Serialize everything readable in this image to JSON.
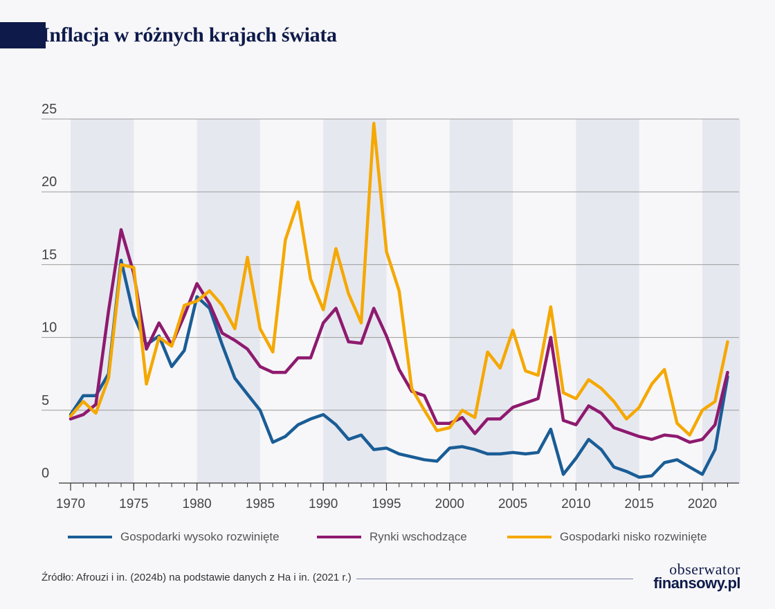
{
  "title": "Inflacja w różnych krajach świata",
  "source": "Źródło: Afrouzi i in. (2024b) na podstawie danych z Ha i in. (2021 r.)",
  "logo": {
    "line1": "obserwator",
    "line2": "finansowy.pl"
  },
  "colors": {
    "band": "#e6e8f0",
    "grid": "#9a9a9a",
    "axis": "#333333"
  },
  "chart_data": {
    "type": "line",
    "title": "Inflacja w różnych krajach świata",
    "xlabel": "",
    "ylabel": "",
    "xlim": [
      1970,
      2023
    ],
    "ylim": [
      0,
      25
    ],
    "x_ticks": [
      1970,
      1975,
      1980,
      1985,
      1990,
      1995,
      2000,
      2005,
      2010,
      2015,
      2020
    ],
    "y_ticks": [
      0,
      5,
      10,
      15,
      20,
      25
    ],
    "grid": "horizontal",
    "shaded_periods": [
      [
        1970,
        1975
      ],
      [
        1980,
        1985
      ],
      [
        1990,
        1995
      ],
      [
        2000,
        2005
      ],
      [
        2010,
        2015
      ],
      [
        2020,
        2023
      ]
    ],
    "legend_position": "bottom",
    "x": [
      1970,
      1971,
      1972,
      1973,
      1974,
      1975,
      1976,
      1977,
      1978,
      1979,
      1980,
      1981,
      1982,
      1983,
      1984,
      1985,
      1986,
      1987,
      1988,
      1989,
      1990,
      1991,
      1992,
      1993,
      1994,
      1995,
      1996,
      1997,
      1998,
      1999,
      2000,
      2001,
      2002,
      2003,
      2004,
      2005,
      2006,
      2007,
      2008,
      2009,
      2010,
      2011,
      2012,
      2013,
      2014,
      2015,
      2016,
      2017,
      2018,
      2019,
      2020,
      2021,
      2022
    ],
    "series": [
      {
        "name": "Gospodarki wysoko rozwinięte",
        "color": "#1a5d96",
        "values": [
          4.7,
          6.0,
          6.0,
          7.5,
          15.3,
          11.5,
          9.5,
          10.1,
          8.0,
          9.1,
          12.8,
          12.0,
          9.5,
          7.2,
          6.1,
          5.0,
          2.8,
          3.2,
          4.0,
          4.4,
          4.7,
          4.0,
          3.0,
          3.3,
          2.3,
          2.4,
          2.0,
          1.8,
          1.6,
          1.5,
          2.4,
          2.5,
          2.3,
          2.0,
          2.0,
          2.1,
          2.0,
          2.1,
          3.7,
          0.6,
          1.7,
          3.0,
          2.3,
          1.1,
          0.8,
          0.4,
          0.5,
          1.4,
          1.6,
          1.1,
          0.6,
          2.3,
          7.3
        ]
      },
      {
        "name": "Rynki wschodzące",
        "color": "#8e1a6e",
        "values": [
          4.4,
          4.7,
          5.4,
          11.8,
          17.4,
          14.4,
          9.2,
          11.0,
          9.5,
          11.5,
          13.7,
          12.3,
          10.3,
          9.8,
          9.2,
          8.0,
          7.6,
          7.6,
          8.6,
          8.6,
          11.0,
          12.0,
          9.7,
          9.6,
          12.0,
          10.1,
          7.8,
          6.3,
          6.0,
          4.1,
          4.1,
          4.5,
          3.4,
          4.4,
          4.4,
          5.2,
          5.5,
          5.8,
          10.0,
          4.3,
          4.0,
          5.3,
          4.8,
          3.8,
          3.5,
          3.2,
          3.0,
          3.3,
          3.2,
          2.8,
          3.0,
          4.0,
          7.6
        ]
      },
      {
        "name": "Gospodarki nisko rozwinięte",
        "color": "#f5a800",
        "values": [
          4.6,
          5.6,
          4.8,
          7.2,
          15.0,
          14.8,
          6.8,
          10.0,
          9.4,
          12.2,
          12.5,
          13.2,
          12.2,
          10.6,
          15.5,
          10.6,
          9.0,
          16.7,
          19.3,
          14.0,
          11.9,
          16.1,
          13.0,
          11.0,
          24.7,
          15.9,
          13.2,
          6.5,
          5.0,
          3.6,
          3.8,
          5.0,
          4.5,
          9.0,
          7.9,
          10.5,
          7.7,
          7.4,
          12.1,
          6.2,
          5.8,
          7.1,
          6.5,
          5.6,
          4.4,
          5.2,
          6.8,
          7.8,
          4.1,
          3.3,
          5.0,
          5.6,
          9.7
        ]
      }
    ]
  }
}
